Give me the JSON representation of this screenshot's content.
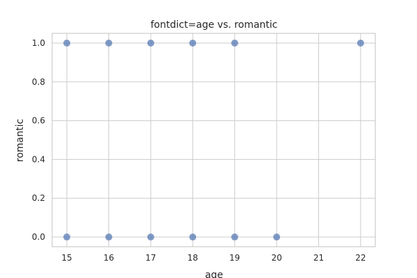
{
  "chart_data": {
    "type": "scatter",
    "title": "fontdict=age vs. romantic",
    "xlabel": "age",
    "ylabel": "romantic",
    "xlim": [
      14.65,
      22.35
    ],
    "ylim": [
      -0.05,
      1.05
    ],
    "xticks": [
      15,
      16,
      17,
      18,
      19,
      20,
      21,
      22
    ],
    "xtick_labels": [
      "15",
      "16",
      "17",
      "18",
      "19",
      "20",
      "21",
      "22"
    ],
    "yticks": [
      0.0,
      0.2,
      0.4,
      0.6,
      0.8,
      1.0
    ],
    "ytick_labels": [
      "0.0",
      "0.2",
      "0.4",
      "0.6",
      "0.8",
      "1.0"
    ],
    "grid": true,
    "legend": "none",
    "marker_color": "#4c72b0",
    "marker_alpha": 0.7,
    "points": [
      {
        "x": 15,
        "y": 1
      },
      {
        "x": 15,
        "y": 0
      },
      {
        "x": 16,
        "y": 1
      },
      {
        "x": 16,
        "y": 0
      },
      {
        "x": 17,
        "y": 1
      },
      {
        "x": 17,
        "y": 0
      },
      {
        "x": 18,
        "y": 1
      },
      {
        "x": 18,
        "y": 0
      },
      {
        "x": 19,
        "y": 1
      },
      {
        "x": 19,
        "y": 0
      },
      {
        "x": 20,
        "y": 0
      },
      {
        "x": 22,
        "y": 1
      }
    ]
  }
}
